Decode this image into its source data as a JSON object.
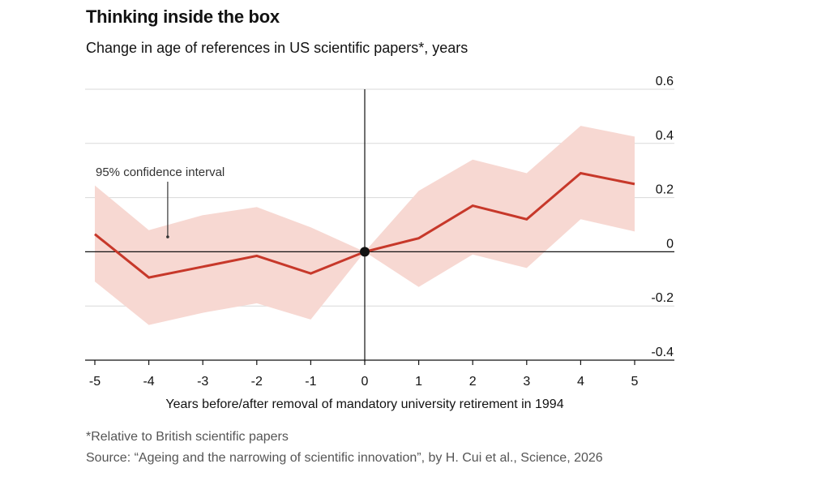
{
  "chart_data": {
    "type": "line",
    "title": "Thinking inside the box",
    "subtitle": "Change in age of references in US scientific papers*, years",
    "xlabel": "Years before/after removal of mandatory university retirement in 1994",
    "ylabel": "",
    "x": [
      -5,
      -4,
      -3,
      -2,
      -1,
      0,
      1,
      2,
      3,
      4,
      5
    ],
    "series": [
      {
        "values": [
          0.065,
          -0.095,
          -0.055,
          -0.015,
          -0.08,
          0.0,
          0.05,
          0.17,
          0.12,
          0.29,
          0.25
        ],
        "lower": [
          -0.11,
          -0.27,
          -0.225,
          -0.19,
          -0.25,
          0.0,
          -0.13,
          -0.01,
          -0.06,
          0.12,
          0.075
        ],
        "upper": [
          0.245,
          0.08,
          0.135,
          0.165,
          0.09,
          0.0,
          0.225,
          0.34,
          0.29,
          0.465,
          0.425
        ]
      }
    ],
    "xlim": [
      -5,
      5
    ],
    "ylim": [
      -0.4,
      0.6
    ],
    "yticks": [
      0.6,
      0.4,
      0.2,
      0,
      -0.2,
      -0.4
    ],
    "ytick_labels": [
      "0.6",
      "0.4",
      "0.2",
      "0",
      "-0.2",
      "-0.4"
    ],
    "xticks": [
      -5,
      -4,
      -3,
      -2,
      -1,
      0,
      1,
      2,
      3,
      4,
      5
    ],
    "xtick_labels": [
      "-5",
      "-4",
      "-3",
      "-2",
      "-1",
      "0",
      "1",
      "2",
      "3",
      "4",
      "5"
    ],
    "annotations": [
      {
        "text": "95% confidence interval",
        "x": -3.65,
        "y": 0.055
      }
    ],
    "grid": true,
    "colors": {
      "line": "#c7382a",
      "band": "#f7d8d2",
      "grid": "#d9d9d9",
      "axis": "#121212",
      "marker": "#121212"
    }
  },
  "footnote": "*Relative to British scientific papers",
  "source": "Source: “Ageing and the narrowing of scientific innovation”, by H. Cui et al., Science, 2026"
}
